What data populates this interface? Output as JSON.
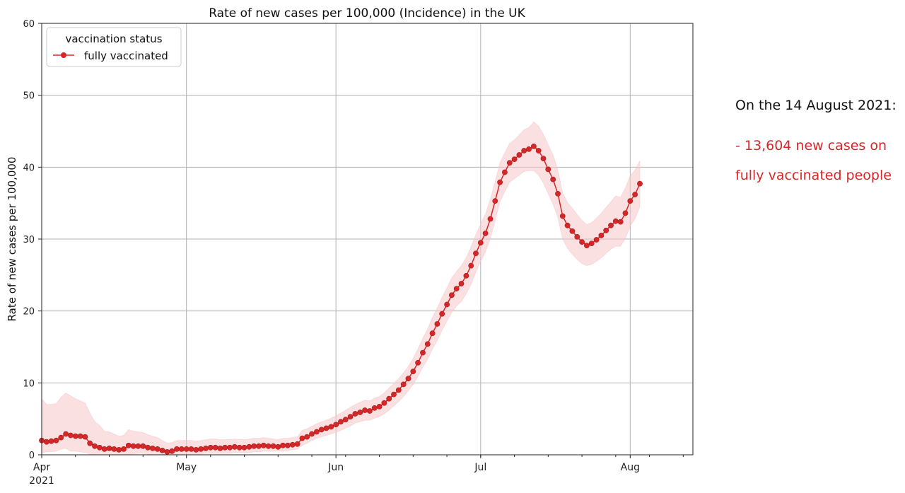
{
  "chart_data": {
    "type": "line",
    "title": "Rate of new cases per 100,000 (Incidence) in the UK",
    "xlabel": "",
    "ylabel": "Rate of new cases per 100,000",
    "x_start": "2021-04-01",
    "x_end": "2021-08-14",
    "x_ticks": [
      {
        "date": "2021-04-01",
        "label": "Apr",
        "sublabel": "2021"
      },
      {
        "date": "2021-05-01",
        "label": "May",
        "sublabel": ""
      },
      {
        "date": "2021-06-01",
        "label": "Jun",
        "sublabel": ""
      },
      {
        "date": "2021-07-01",
        "label": "Jul",
        "sublabel": ""
      },
      {
        "date": "2021-08-01",
        "label": "Aug",
        "sublabel": ""
      }
    ],
    "ylim": [
      0,
      60
    ],
    "y_ticks": [
      0,
      10,
      20,
      30,
      40,
      50,
      60
    ],
    "grid": true,
    "legend": {
      "title": "vaccination status",
      "placement": "top-left"
    },
    "series": [
      {
        "name": "fully vaccinated",
        "color": "#d62728",
        "band_color": "#f5c6c8",
        "values": [
          2.0,
          1.8,
          1.9,
          2.0,
          2.4,
          2.9,
          2.7,
          2.6,
          2.6,
          2.5,
          1.6,
          1.2,
          1.0,
          0.8,
          0.9,
          0.8,
          0.7,
          0.8,
          1.3,
          1.2,
          1.2,
          1.2,
          1.0,
          0.9,
          0.8,
          0.6,
          0.4,
          0.5,
          0.8,
          0.8,
          0.8,
          0.8,
          0.7,
          0.8,
          0.9,
          1.0,
          1.0,
          0.9,
          1.0,
          1.0,
          1.1,
          1.0,
          1.0,
          1.1,
          1.2,
          1.2,
          1.3,
          1.2,
          1.2,
          1.1,
          1.3,
          1.3,
          1.4,
          1.5,
          2.3,
          2.5,
          2.9,
          3.2,
          3.5,
          3.7,
          3.9,
          4.2,
          4.6,
          4.9,
          5.3,
          5.7,
          5.9,
          6.2,
          6.1,
          6.5,
          6.7,
          7.2,
          7.8,
          8.4,
          9.0,
          9.8,
          10.6,
          11.6,
          12.8,
          14.2,
          15.4,
          16.9,
          18.2,
          19.6,
          20.9,
          22.2,
          23.1,
          23.8,
          24.9,
          26.3,
          28.0,
          29.5,
          30.8,
          32.8,
          35.3,
          37.9,
          39.3,
          40.6,
          41.1,
          41.7,
          42.3,
          42.5,
          42.9,
          42.3,
          41.2,
          39.7,
          38.3,
          36.3,
          33.2,
          31.9,
          31.1,
          30.3,
          29.6,
          29.1,
          29.4,
          29.9,
          30.5,
          31.2,
          31.9,
          32.5,
          32.4,
          33.6,
          35.3,
          36.2,
          37.7
        ],
        "lower": [
          0.2,
          0.4,
          0.4,
          0.5,
          0.8,
          0.9,
          0.5,
          0.5,
          0.4,
          0.3,
          0.1,
          0.0,
          0.0,
          0.0,
          0.0,
          0.0,
          0.0,
          0.0,
          0.1,
          0.1,
          0.2,
          0.2,
          0.1,
          0.0,
          0.0,
          0.0,
          0.0,
          0.0,
          0.1,
          0.1,
          0.1,
          0.1,
          0.1,
          0.1,
          0.2,
          0.2,
          0.2,
          0.2,
          0.2,
          0.2,
          0.3,
          0.3,
          0.3,
          0.3,
          0.4,
          0.4,
          0.5,
          0.5,
          0.5,
          0.5,
          0.5,
          0.6,
          0.7,
          0.8,
          1.3,
          1.6,
          2.0,
          2.3,
          2.5,
          2.7,
          2.9,
          3.1,
          3.4,
          3.7,
          4.0,
          4.4,
          4.6,
          4.8,
          4.8,
          5.1,
          5.3,
          5.7,
          6.2,
          6.8,
          7.4,
          8.1,
          8.9,
          9.8,
          10.9,
          12.2,
          13.3,
          14.7,
          15.9,
          17.3,
          18.6,
          19.8,
          20.7,
          21.3,
          22.4,
          23.7,
          25.4,
          26.9,
          28.2,
          30.1,
          32.6,
          35.2,
          36.6,
          37.9,
          38.4,
          38.9,
          39.4,
          39.5,
          39.5,
          38.9,
          37.8,
          36.3,
          34.9,
          33.0,
          30.0,
          28.7,
          27.9,
          27.2,
          26.6,
          26.3,
          26.5,
          26.9,
          27.4,
          28.0,
          28.6,
          29.0,
          29.0,
          30.1,
          31.8,
          32.8,
          34.5
        ],
        "upper": [
          7.8,
          7.0,
          7.0,
          7.1,
          8.0,
          8.6,
          8.2,
          7.8,
          7.5,
          7.2,
          5.8,
          4.6,
          4.1,
          3.3,
          3.2,
          2.9,
          2.6,
          2.7,
          3.5,
          3.3,
          3.2,
          3.1,
          2.8,
          2.6,
          2.4,
          2.0,
          1.6,
          1.7,
          2.0,
          2.0,
          2.0,
          2.0,
          1.9,
          2.0,
          2.1,
          2.2,
          2.2,
          2.1,
          2.1,
          2.1,
          2.2,
          2.1,
          2.1,
          2.2,
          2.3,
          2.3,
          2.4,
          2.3,
          2.2,
          2.1,
          2.3,
          2.3,
          2.4,
          2.5,
          3.4,
          3.6,
          4.0,
          4.3,
          4.6,
          4.8,
          5.1,
          5.4,
          5.8,
          6.2,
          6.6,
          7.0,
          7.3,
          7.6,
          7.5,
          7.9,
          8.1,
          8.6,
          9.3,
          9.9,
          10.6,
          11.4,
          12.3,
          13.4,
          14.7,
          16.2,
          17.5,
          19.1,
          20.4,
          21.9,
          23.2,
          24.6,
          25.5,
          26.3,
          27.4,
          28.9,
          30.6,
          32.1,
          33.5,
          35.5,
          38.0,
          40.6,
          42.0,
          43.3,
          43.8,
          44.5,
          45.2,
          45.5,
          46.3,
          45.7,
          44.6,
          43.1,
          41.7,
          39.6,
          36.4,
          35.1,
          34.3,
          33.4,
          32.6,
          32.0,
          32.3,
          32.9,
          33.6,
          34.4,
          35.2,
          36.0,
          35.8,
          37.1,
          38.8,
          39.6,
          40.9
        ]
      }
    ],
    "annotations": [
      {
        "text": "On the 14 August 2021:",
        "color": "#111111"
      },
      {
        "text": "- 13,604 new cases on",
        "color": "#d62728"
      },
      {
        "text": "fully vaccinated people",
        "color": "#d62728"
      }
    ]
  }
}
